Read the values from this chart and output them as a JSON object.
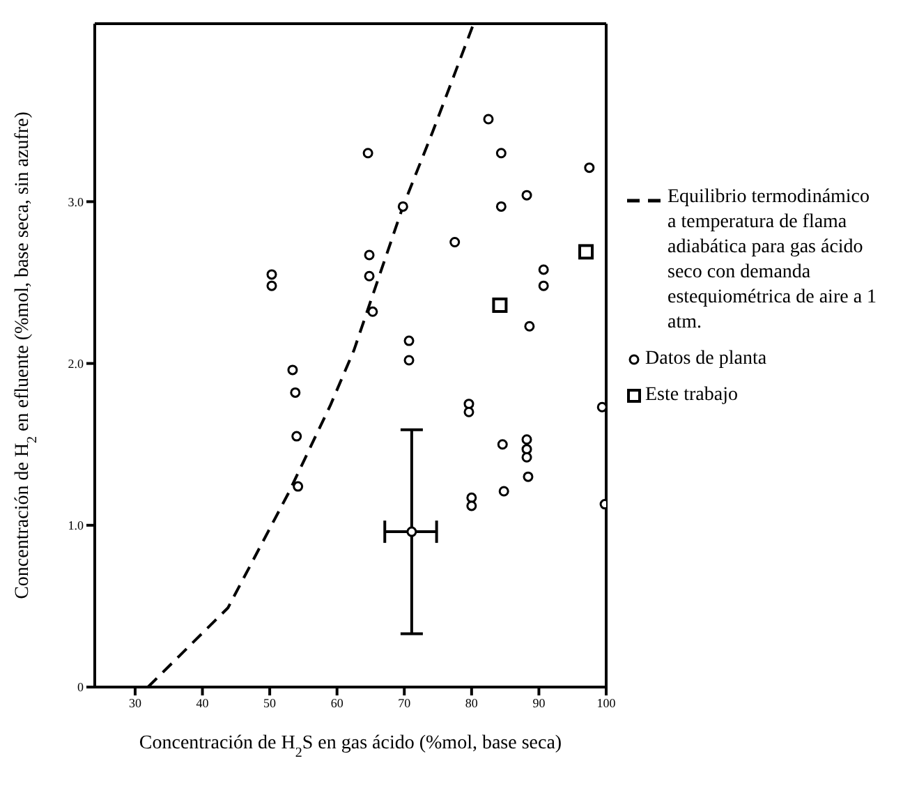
{
  "chart_data": {
    "type": "scatter",
    "xlabel": "Concentración de H$_{2}$S en gas ácido (%mol, base seca)",
    "ylabel": "Concentración de H$_{2}$ en efluente (%mol, base seca, sin azufre)",
    "xlim": [
      24,
      100
    ],
    "xticks": [
      30,
      40,
      50,
      60,
      70,
      80,
      90,
      100
    ],
    "ylim": [
      0,
      4.1
    ],
    "yticks": [
      0,
      {
        "value": 1,
        "label": "1.0"
      },
      {
        "value": 2,
        "label": "2.0"
      },
      {
        "value": 3,
        "label": "3.0"
      }
    ],
    "grid": false,
    "legend": "right",
    "series": [
      {
        "name": "Equilibrio termodinámico a temperatura de flama adiabática para gas ácido seco con demanda estequiométrica de aire a 1 atm.",
        "type": "line",
        "line_style": "dashed",
        "marker": "none",
        "color": "#000000",
        "x": [
          31.9,
          43.8,
          52.8,
          59,
          62.5,
          69.8,
          74.2,
          80.3
        ],
        "values": [
          0,
          0.49,
          1.2,
          1.74,
          2.08,
          2.97,
          3.43,
          4.1
        ]
      },
      {
        "name": "Datos de planta",
        "type": "scatter",
        "marker": "circle",
        "color": "#000000",
        "x": [
          82.5,
          64.6,
          84.4,
          97.5,
          88.2,
          84.4,
          69.8,
          77.5,
          64.8,
          64.8,
          50.3,
          50.3,
          90.7,
          90.7,
          88.6,
          65.3,
          70.7,
          70.7,
          53.4,
          53.8,
          54.0,
          54.2,
          79.6,
          79.6,
          99.4,
          84.6,
          88.2,
          88.2,
          88.2,
          88.4,
          84.8,
          80.0,
          80.0,
          99.8,
          71.1
        ],
        "values": [
          3.51,
          3.3,
          3.3,
          3.21,
          3.04,
          2.97,
          2.97,
          2.75,
          2.67,
          2.54,
          2.55,
          2.48,
          2.58,
          2.48,
          2.23,
          2.32,
          2.14,
          2.02,
          1.96,
          1.82,
          1.55,
          1.24,
          1.75,
          1.7,
          1.73,
          1.5,
          1.53,
          1.47,
          1.42,
          1.3,
          1.21,
          1.17,
          1.12,
          1.13,
          0.96
        ],
        "errors": [
          null,
          null,
          null,
          null,
          null,
          null,
          null,
          null,
          null,
          null,
          null,
          null,
          null,
          null,
          null,
          null,
          null,
          null,
          null,
          null,
          null,
          null,
          null,
          null,
          null,
          null,
          null,
          null,
          null,
          null,
          null,
          null,
          null,
          null,
          [
            0.33,
            1.59
          ]
        ],
        "xerrors": [
          null,
          null,
          null,
          null,
          null,
          null,
          null,
          null,
          null,
          null,
          null,
          null,
          null,
          null,
          null,
          null,
          null,
          null,
          null,
          null,
          null,
          null,
          null,
          null,
          null,
          null,
          null,
          null,
          null,
          null,
          null,
          null,
          null,
          null,
          [
            67.1,
            74.8
          ]
        ]
      },
      {
        "name": "Este trabajo",
        "type": "scatter",
        "marker": "square",
        "color": "#000000",
        "x": [
          97.0,
          84.2
        ],
        "values": [
          2.69,
          2.36
        ]
      }
    ]
  }
}
